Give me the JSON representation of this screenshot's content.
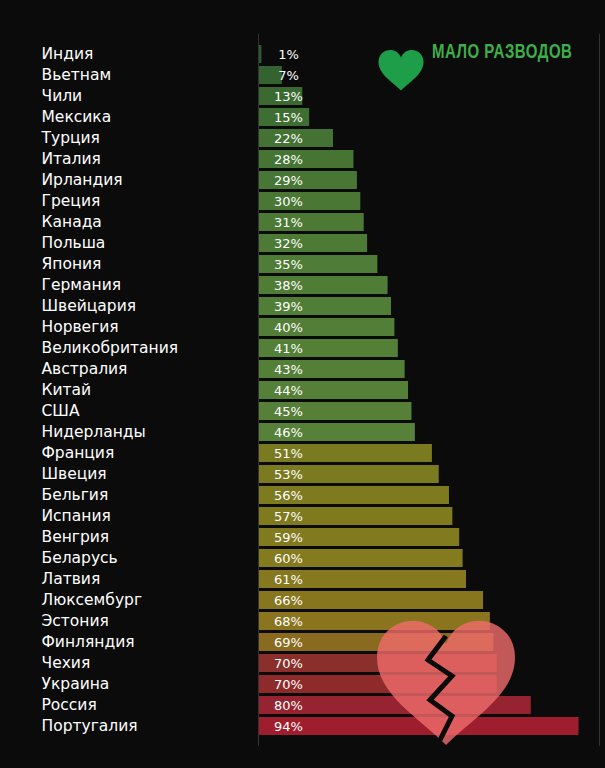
{
  "chart_data": {
    "type": "bar",
    "orientation": "horizontal",
    "annotation": "МАЛО РАЗВОДОВ",
    "categories": [
      "Индия",
      "Вьетнам",
      "Чили",
      "Мексика",
      "Турция",
      "Италия",
      "Ирландия",
      "Греция",
      "Канада",
      "Польша",
      "Япония",
      "Германия",
      "Швейцария",
      "Норвегия",
      "Великобритания",
      "Австралия",
      "Китай",
      "США",
      "Нидерланды",
      "Франция",
      "Швеция",
      "Бельгия",
      "Испания",
      "Венгрия",
      "Беларусь",
      "Латвия",
      "Люксембург",
      "Эстония",
      "Финляндия",
      "Чехия",
      "Украина",
      "Россия",
      "Португалия"
    ],
    "values": [
      1,
      7,
      13,
      15,
      22,
      28,
      29,
      30,
      31,
      32,
      35,
      38,
      39,
      40,
      41,
      43,
      44,
      45,
      46,
      51,
      53,
      56,
      57,
      59,
      60,
      61,
      66,
      68,
      69,
      70,
      70,
      80,
      94
    ],
    "value_labels": [
      "1%",
      "7%",
      "13%",
      "15%",
      "22%",
      "28%",
      "29%",
      "30%",
      "31%",
      "32%",
      "35%",
      "38%",
      "39%",
      "40%",
      "41%",
      "43%",
      "44%",
      "45%",
      "46%",
      "51%",
      "53%",
      "56%",
      "57%",
      "59%",
      "60%",
      "61%",
      "66%",
      "68%",
      "69%",
      "70%",
      "70%",
      "80%",
      "94%"
    ],
    "colors": [
      "#2e5c2e",
      "#35632f",
      "#3a6a30",
      "#3e6e31",
      "#437232",
      "#467533",
      "#487634",
      "#4a7834",
      "#4c7a35",
      "#4d7b35",
      "#4f7c36",
      "#507d36",
      "#517e36",
      "#527e37",
      "#537f37",
      "#547f37",
      "#558037",
      "#568038",
      "#578138",
      "#7a7a20",
      "#7c7a20",
      "#7e7a1f",
      "#807a1f",
      "#827a1e",
      "#847a1e",
      "#86781e",
      "#88761e",
      "#8a741e",
      "#8a6a1e",
      "#8a2f2a",
      "#8e2a2a",
      "#952430",
      "#9e1e2e"
    ],
    "xlim": [
      0,
      100
    ],
    "data_labels": true,
    "tick_labels": "y",
    "grid": false
  }
}
